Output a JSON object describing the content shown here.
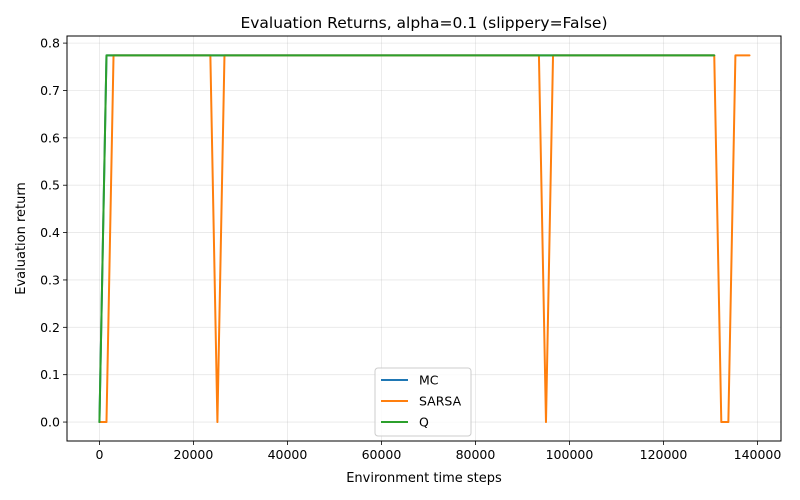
{
  "chart_data": {
    "type": "line",
    "title": "Evaluation Returns, alpha=0.1 (slippery=False)",
    "xlabel": "Environment time steps",
    "ylabel": "Evaluation return",
    "xlim": [
      -6900,
      145000
    ],
    "ylim": [
      -0.04,
      0.815
    ],
    "xticks": [
      0,
      20000,
      40000,
      60000,
      80000,
      100000,
      120000,
      140000
    ],
    "xtick_labels": [
      "0",
      "20000",
      "40000",
      "60000",
      "80000",
      "100000",
      "120000",
      "140000"
    ],
    "yticks": [
      0.0,
      0.1,
      0.2,
      0.3,
      0.4,
      0.5,
      0.6,
      0.7,
      0.8
    ],
    "ytick_labels": [
      "0.0",
      "0.1",
      "0.2",
      "0.3",
      "0.4",
      "0.5",
      "0.6",
      "0.7",
      "0.8"
    ],
    "grid": true,
    "legend_position": "lower-center",
    "series": [
      {
        "name": "MC",
        "color": "#1f77b4",
        "x": [
          0,
          1500,
          130800
        ],
        "y": [
          0.0,
          0.774,
          0.774
        ]
      },
      {
        "name": "SARSA",
        "color": "#ff7f0e",
        "x": [
          0,
          1500,
          3000,
          23600,
          25100,
          26600,
          93500,
          95000,
          96500,
          130800,
          132300,
          133800,
          135300,
          138300
        ],
        "y": [
          0.0,
          0.0,
          0.774,
          0.774,
          0.0,
          0.774,
          0.774,
          0.0,
          0.774,
          0.774,
          0.0,
          0.0,
          0.774,
          0.774
        ]
      },
      {
        "name": "Q",
        "color": "#2ca02c",
        "x": [
          0,
          1500,
          130800
        ],
        "y": [
          0.0,
          0.774,
          0.774
        ]
      }
    ]
  }
}
